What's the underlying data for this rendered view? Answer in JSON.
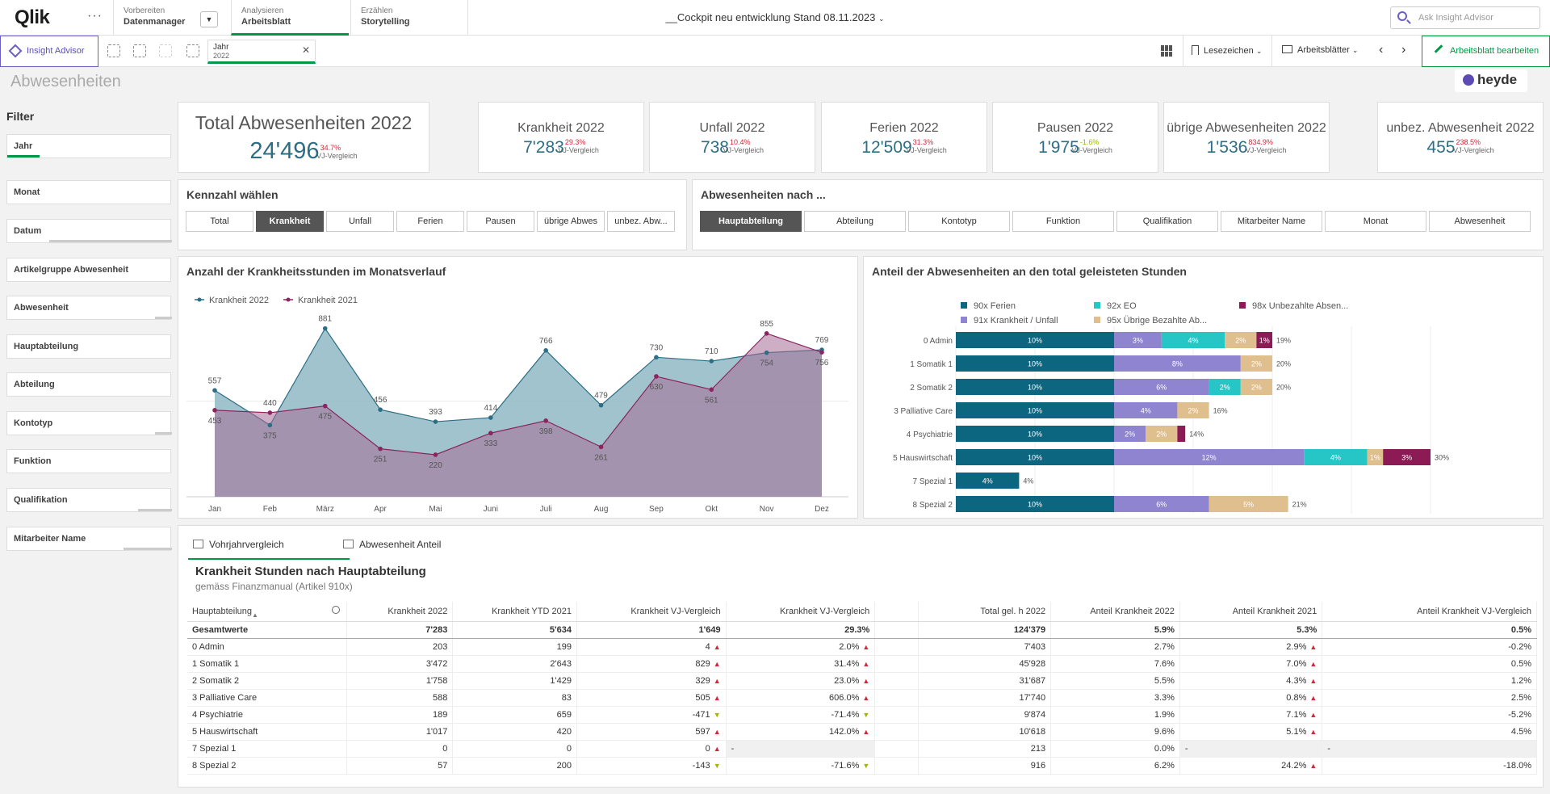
{
  "nav": {
    "logo": "Qlik",
    "more_label": "···",
    "tabs": [
      {
        "small": "Vorbereiten",
        "big": "Datenmanager"
      },
      {
        "small": "Analysieren",
        "big": "Arbeitsblatt"
      },
      {
        "small": "Erzählen",
        "big": "Storytelling"
      }
    ],
    "app_title": "__Cockpit neu entwicklung Stand 08.11.2023",
    "ask_placeholder": "Ask Insight Advisor"
  },
  "toolbar": {
    "insight_label": "Insight Advisor",
    "selection": {
      "field": "Jahr",
      "value": "2022"
    },
    "bookmarks_label": "Lesezeichen",
    "sheets_label": "Arbeitsblätter",
    "edit_label": "Arbeitsblatt bearbeiten"
  },
  "sheet": {
    "title": "Abwesenheiten",
    "brand": "heyde"
  },
  "filters": {
    "title": "Filter",
    "items": [
      "Jahr",
      "Monat",
      "Datum",
      "Artikelgruppe Abwesenheit",
      "Abwesenheit",
      "Hauptabteilung",
      "Abteilung",
      "Kontotyp",
      "Funktion",
      "Qualifikation",
      "Mitarbeiter Name"
    ]
  },
  "kpi_main": {
    "label": "Total Abwesenheiten 2022",
    "value": "24'496",
    "pct": "34.7%",
    "vj": "VJ-Vergleich"
  },
  "kpis": [
    {
      "label": "Krankheit 2022",
      "value": "7'283",
      "pct": "29.3%",
      "vj": "VJ-Vergleich",
      "good": false
    },
    {
      "label": "Unfall 2022",
      "value": "738",
      "pct": "10.4%",
      "vj": "VJ-Vergleich",
      "good": false
    },
    {
      "label": "Ferien 2022",
      "value": "12'509",
      "pct": "31.3%",
      "vj": "VJ-Vergleich",
      "good": false
    },
    {
      "label": "Pausen 2022",
      "value": "1'975",
      "pct": "-1.6%",
      "vj": "VJ-Vergleich",
      "good": true
    },
    {
      "label": "übrige Abwesenheiten 2022",
      "value": "1'536",
      "pct": "834.9%",
      "vj": "VJ-Vergleich",
      "good": false
    },
    {
      "label": "unbez. Abwesenheit 2022",
      "value": "455",
      "pct": "238.5%",
      "vj": "VJ-Vergleich",
      "good": false
    }
  ],
  "kennzahl": {
    "title": "Kennzahl wählen",
    "buttons": [
      "Total",
      "Krankheit",
      "Unfall",
      "Ferien",
      "Pausen",
      "übrige Abwes",
      "unbez. Abw..."
    ],
    "active": 1
  },
  "abw_nach": {
    "title": "Abwesenheiten nach ...",
    "buttons": [
      "Hauptabteilung",
      "Abteilung",
      "Kontotyp",
      "Funktion",
      "Qualifikation",
      "Mitarbeiter Name",
      "Monat",
      "Abwesenheit"
    ],
    "active": 0
  },
  "line_chart": {
    "title": "Anzahl der Krankheitsstunden im Monatsverlauf",
    "colors": {
      "s2022": "#2b6e85",
      "s2021": "#8b2461"
    }
  },
  "bar_chart": {
    "title": "Anteil der Abwesenheiten an den total geleisteten Stunden",
    "colors": [
      "#0d6680",
      "#8f84cf",
      "#26c6c6",
      "#e0bf8f",
      "#8b1a55"
    ]
  },
  "chart_data": [
    {
      "type": "area",
      "title": "Anzahl der Krankheitsstunden im Monatsverlauf",
      "categories": [
        "Jan",
        "Feb",
        "März",
        "Apr",
        "Mai",
        "Juni",
        "Juli",
        "Aug",
        "Sep",
        "Okt",
        "Nov",
        "Dez"
      ],
      "series": [
        {
          "name": "Krankheit 2022",
          "values": [
            557,
            375,
            881,
            456,
            393,
            414,
            766,
            479,
            730,
            710,
            754,
            769
          ]
        },
        {
          "name": "Krankheit 2021",
          "values": [
            453,
            440,
            475,
            251,
            220,
            333,
            398,
            261,
            630,
            561,
            855,
            756
          ]
        }
      ],
      "legend": "top-left",
      "ylim": [
        0,
        1000
      ]
    },
    {
      "type": "bar",
      "orientation": "horizontal",
      "stacked": true,
      "title": "Anteil der Abwesenheiten an den total geleisteten Stunden",
      "categories": [
        "0 Admin",
        "1 Somatik 1",
        "2 Somatik 2",
        "3 Palliative Care",
        "4 Psychiatrie",
        "5 Hauswirtschaft",
        "7 Spezial 1",
        "8 Spezial 2"
      ],
      "series": [
        {
          "name": "90x Ferien",
          "values": [
            10,
            10,
            10,
            10,
            10,
            10,
            4,
            10
          ]
        },
        {
          "name": "91x Krankheit / Unfall",
          "values": [
            3,
            8,
            6,
            4,
            2,
            12,
            0,
            6
          ]
        },
        {
          "name": "92x EO",
          "values": [
            4,
            0,
            2,
            0,
            0,
            4,
            0,
            0
          ]
        },
        {
          "name": "95x Übrige Bezahlte Ab...",
          "values": [
            2,
            2,
            2,
            2,
            2,
            1,
            0,
            5
          ]
        },
        {
          "name": "98x Unbezahlte Absen...",
          "values": [
            1,
            0,
            0,
            0,
            0.5,
            3,
            0,
            0
          ]
        }
      ],
      "totals": [
        "19%",
        "20%",
        "20%",
        "16%",
        "14%",
        "30%",
        "4%",
        "21%"
      ],
      "legend": "top"
    },
    {
      "type": "table",
      "title": "Krankheit Stunden nach Hauptabteilung",
      "subtitle": "gemäss Finanzmanual (Artikel 910x)",
      "columns": [
        "Hauptabteilung",
        "Krankheit 2022",
        "Krankheit YTD 2021",
        "Krankheit VJ-Vergleich",
        "Krankheit VJ-Vergleich",
        "Total gel. h 2022",
        "Anteil Krankheit 2022",
        "Anteil Krankheit 2021",
        "Anteil Krankheit VJ-Vergleich"
      ],
      "total_row": [
        "Gesamtwerte",
        "7'283",
        "5'634",
        "1'649",
        "29.3%",
        "124'379",
        "5.9%",
        "5.3%",
        "0.5%"
      ],
      "rows": [
        [
          "0 Admin",
          "203",
          "199",
          "4",
          "2.0%",
          "7'403",
          "2.7%",
          "2.9%",
          "-0.2%"
        ],
        [
          "1 Somatik 1",
          "3'472",
          "2'643",
          "829",
          "31.4%",
          "45'928",
          "7.6%",
          "7.0%",
          "0.5%"
        ],
        [
          "2 Somatik 2",
          "1'758",
          "1'429",
          "329",
          "23.0%",
          "31'687",
          "5.5%",
          "4.3%",
          "1.2%"
        ],
        [
          "3 Palliative Care",
          "588",
          "83",
          "505",
          "606.0%",
          "17'740",
          "3.3%",
          "0.8%",
          "2.5%"
        ],
        [
          "4 Psychiatrie",
          "189",
          "659",
          "-471",
          "-71.4%",
          "9'874",
          "1.9%",
          "7.1%",
          "-5.2%"
        ],
        [
          "5 Hauswirtschaft",
          "1'017",
          "420",
          "597",
          "142.0%",
          "10'618",
          "9.6%",
          "5.1%",
          "4.5%"
        ],
        [
          "7 Spezial 1",
          "0",
          "0",
          "0",
          "-",
          "213",
          "0.0%",
          "-",
          "-"
        ],
        [
          "8 Spezial 2",
          "57",
          "200",
          "-143",
          "-71.6%",
          "916",
          "6.2%",
          "24.2%",
          "-18.0%"
        ]
      ]
    }
  ],
  "table_tabs": [
    "Vohrjahrvergleich",
    "Abwesenheit Anteil"
  ]
}
